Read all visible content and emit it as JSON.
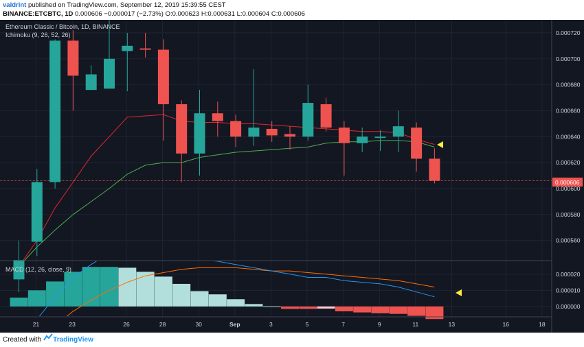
{
  "header": {
    "user": "valdrint",
    "published_text": "published on TradingView.com, September 12, 2019 15:39:55 CEST",
    "symbol": "BINANCE:ETCBTC, 1D",
    "last": "0.000606",
    "change": "−0.000017 (−2.73%)",
    "ohlc": {
      "o_label": "O:",
      "o": "0.000623",
      "h_label": "H:",
      "h": "0.000631",
      "l_label": "L:",
      "l": "0.000604",
      "c_label": "C:",
      "c": "0.000606"
    }
  },
  "legend": {
    "title": "Ethereum Classic / Bitcoin, 1D, BINANCE",
    "ichimoku": "Ichimoku (9, 26, 52, 26)",
    "macd": "MACD (12, 26, close, 9)"
  },
  "colors": {
    "background": "#131722",
    "up": "#26a69a",
    "down": "#ef5350",
    "conversion_line": "#e0262f",
    "base_line": "#4caf50",
    "macd_line": "#2196f3",
    "signal_line": "#ff6d00",
    "hist_pos_strong": "#26a69a",
    "hist_pos_weak": "#b2dfdb",
    "hist_neg_strong": "#ef5350",
    "hist_neg_weak": "#ffcdd2",
    "marker": "#ffeb3b"
  },
  "chart_data": [
    {
      "type": "candlestick",
      "title": "Ethereum Classic / Bitcoin, 1D, BINANCE",
      "x_tick_labels": [
        "21",
        "23",
        "26",
        "28",
        "30",
        "Sep",
        "3",
        "5",
        "7",
        "9",
        "11",
        "13",
        "16",
        "18"
      ],
      "y_ticks": [
        "0.000720",
        "0.000700",
        "0.000680",
        "0.000660",
        "0.000640",
        "0.000620",
        "0.000600",
        "0.000580",
        "0.000560"
      ],
      "ylim": [
        0.000545,
        0.00073
      ],
      "last_price_label": "0.000606",
      "candles": [
        {
          "o": 0.00053,
          "h": 0.00056,
          "l": 0.00052,
          "c": 0.000545
        },
        {
          "o": 0.000559,
          "h": 0.000615,
          "l": 0.000548,
          "c": 0.000605
        },
        {
          "o": 0.000605,
          "h": 0.000715,
          "l": 0.0006,
          "c": 0.000714
        },
        {
          "o": 0.000714,
          "h": 0.000722,
          "l": 0.00066,
          "c": 0.000687
        },
        {
          "o": 0.000676,
          "h": 0.000695,
          "l": 0.000676,
          "c": 0.000688
        },
        {
          "o": 0.000677,
          "h": 0.00073,
          "l": 0.000677,
          "c": 0.0007
        },
        {
          "o": 0.000706,
          "h": 0.00072,
          "l": 0.000675,
          "c": 0.00071
        },
        {
          "o": 0.000708,
          "h": 0.00072,
          "l": 0.000701,
          "c": 0.000707
        },
        {
          "o": 0.000707,
          "h": 0.000715,
          "l": 0.000637,
          "c": 0.000665
        },
        {
          "o": 0.000665,
          "h": 0.000668,
          "l": 0.000605,
          "c": 0.000627
        },
        {
          "o": 0.000627,
          "h": 0.000676,
          "l": 0.00061,
          "c": 0.000658
        },
        {
          "o": 0.000658,
          "h": 0.000667,
          "l": 0.00064,
          "c": 0.000652
        },
        {
          "o": 0.000652,
          "h": 0.000657,
          "l": 0.000632,
          "c": 0.00064
        },
        {
          "o": 0.00064,
          "h": 0.000692,
          "l": 0.000633,
          "c": 0.000647
        },
        {
          "o": 0.000646,
          "h": 0.000652,
          "l": 0.000636,
          "c": 0.000641
        },
        {
          "o": 0.000642,
          "h": 0.000648,
          "l": 0.00063,
          "c": 0.00064
        },
        {
          "o": 0.00064,
          "h": 0.00068,
          "l": 0.000637,
          "c": 0.000666
        },
        {
          "o": 0.000665,
          "h": 0.00067,
          "l": 0.000644,
          "c": 0.000647
        },
        {
          "o": 0.000647,
          "h": 0.000652,
          "l": 0.00061,
          "c": 0.000635
        },
        {
          "o": 0.000635,
          "h": 0.000647,
          "l": 0.000628,
          "c": 0.00064
        },
        {
          "o": 0.000639,
          "h": 0.000645,
          "l": 0.000629,
          "c": 0.00064
        },
        {
          "o": 0.00064,
          "h": 0.00066,
          "l": 0.000628,
          "c": 0.000648
        },
        {
          "o": 0.000647,
          "h": 0.000651,
          "l": 0.000613,
          "c": 0.000623
        },
        {
          "o": 0.000623,
          "h": 0.000631,
          "l": 0.000604,
          "c": 0.000606
        }
      ],
      "conversion_line": [
        0.00054,
        0.00056,
        0.000585,
        0.000605,
        0.000625,
        0.00064,
        0.000655,
        0.000656,
        0.000657,
        0.000652,
        0.000651,
        0.000651,
        0.00065,
        0.00065,
        0.000649,
        0.000648,
        0.000647,
        0.000646,
        0.000645,
        0.000644,
        0.000644,
        0.000643,
        0.000638,
        0.000634
      ],
      "base_line": [
        0.00054,
        0.000555,
        0.000568,
        0.00058,
        0.00059,
        0.0006,
        0.000611,
        0.000618,
        0.00062,
        0.00062,
        0.000624,
        0.000626,
        0.000628,
        0.000629,
        0.00063,
        0.000631,
        0.000632,
        0.000635,
        0.000636,
        0.000636,
        0.000637,
        0.000637,
        0.000636,
        0.000632
      ]
    },
    {
      "type": "macd",
      "title": "MACD (12, 26, close, 9)",
      "y_ticks": [
        "0.000020",
        "0.000010",
        "0.000000"
      ],
      "ylim": [
        -6e-06,
        2.8e-05
      ],
      "histogram": [
        5.5e-06,
        1e-05,
        1.55e-05,
        2.15e-05,
        2.45e-05,
        2.45e-05,
        2.4e-05,
        2.15e-05,
        1.85e-05,
        1.4e-05,
        9.5e-06,
        7.5e-06,
        4.5e-06,
        1.5e-06,
        0.0,
        -1.5e-06,
        -1.5e-06,
        -1.3e-06,
        -3e-06,
        -3.7e-06,
        -4.2e-06,
        -4.6e-06,
        -5.8e-06,
        -7.8e-06
      ],
      "macd": [
        -2e-05,
        -8e-06,
        6e-06,
        1.8e-05,
        2.6e-05,
        3.3e-05,
        3.5e-05,
        3.4e-05,
        3.3e-05,
        3.1e-05,
        2.9e-05,
        2.8e-05,
        2.6e-05,
        2.4e-05,
        2.2e-05,
        2e-05,
        1.8e-05,
        1.8e-05,
        1.6e-05,
        1.5e-05,
        1.4e-05,
        1.2e-05,
        9e-06,
        6e-06
      ],
      "signal": [
        -3e-05,
        -2.2e-05,
        -1.2e-05,
        -3e-06,
        4e-06,
        1e-05,
        1.5e-05,
        1.9e-05,
        2.1e-05,
        2.3e-05,
        2.4e-05,
        2.4e-05,
        2.4e-05,
        2.3e-05,
        2.2e-05,
        2.2e-05,
        2.1e-05,
        2e-05,
        1.9e-05,
        1.8e-05,
        1.7e-05,
        1.6e-05,
        1.4e-05,
        1.2e-05
      ]
    }
  ],
  "footer": {
    "created_with": "Created with",
    "brand": "TradingView"
  }
}
